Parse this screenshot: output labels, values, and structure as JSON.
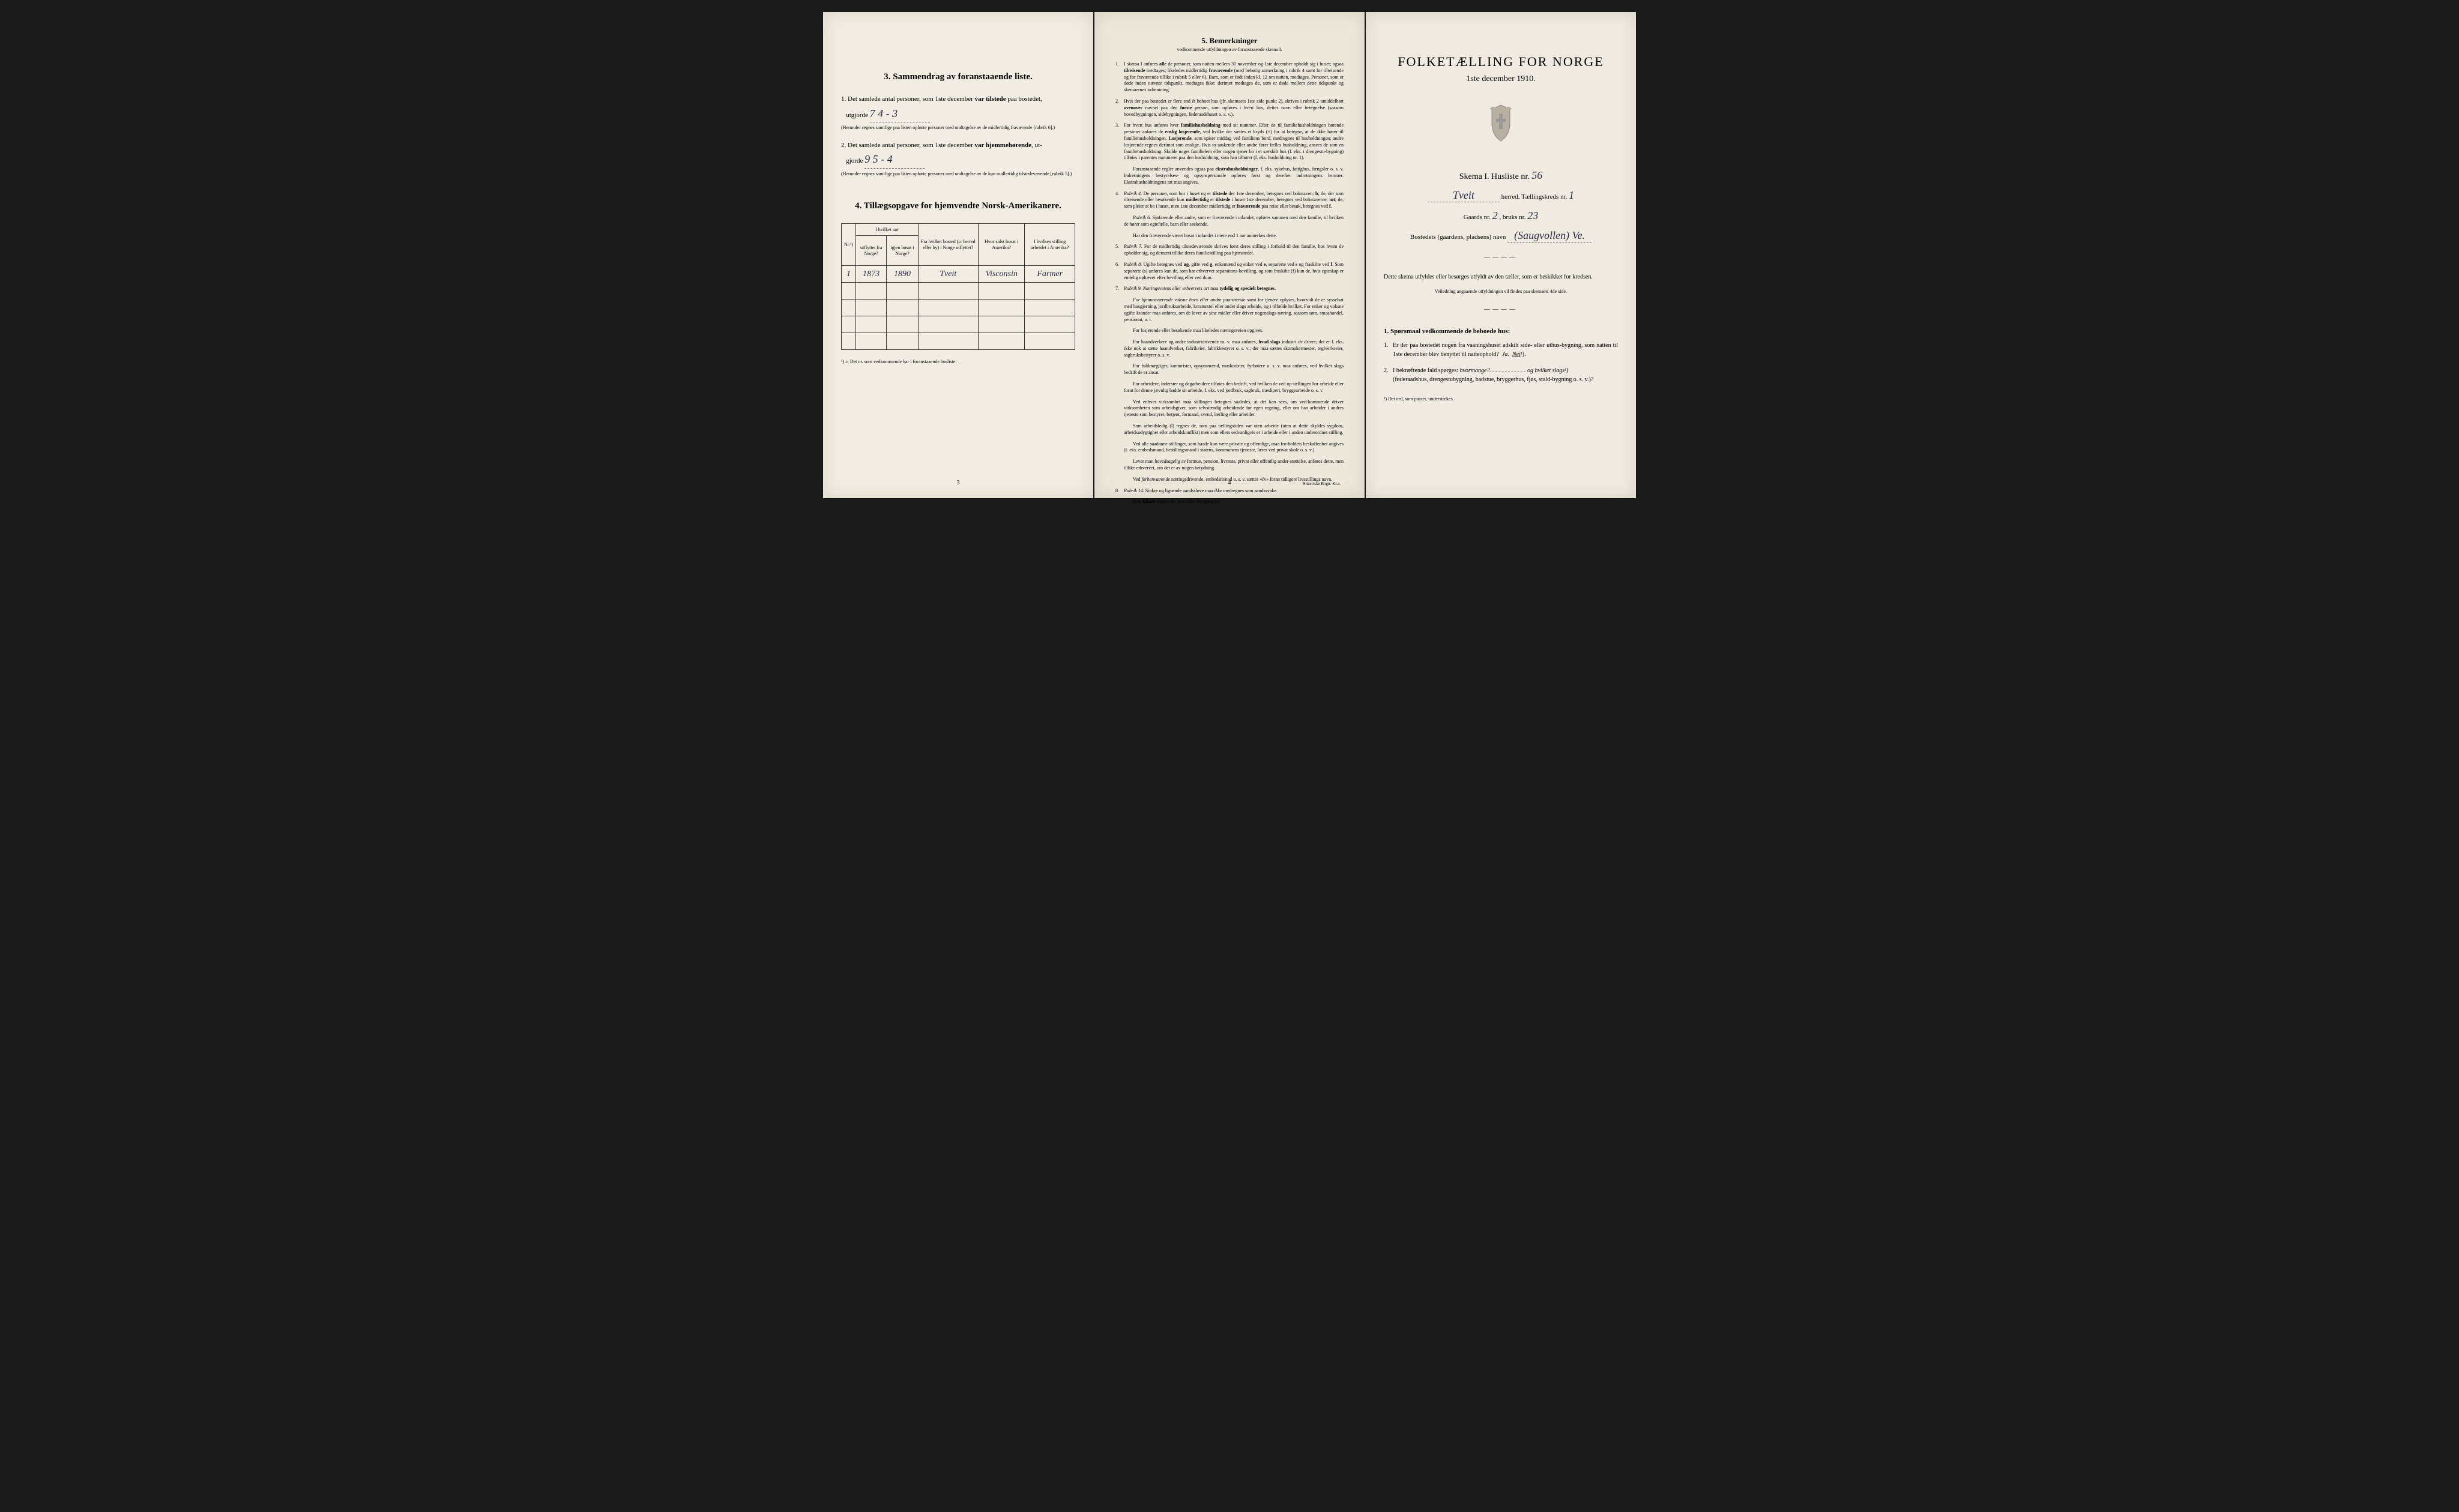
{
  "page1": {
    "section3": {
      "title": "3. Sammendrag av foranstaaende liste.",
      "item1_text": "Det samlede antal personer, som 1ste december",
      "item1_bold": "var tilstede",
      "item1_cont": "paa bostedet,",
      "item1_line2": "utgjorde",
      "item1_written": "7  4 - 3",
      "item1_note": "(Herunder regnes samtlige paa listen opførte personer med undtagelse av de midlertidig fraværende [rubrik 6].)",
      "item2_text": "Det samlede antal personer, som 1ste december",
      "item2_bold": "var hjemmehørende",
      "item2_cont": ", ut-",
      "item2_line2": "gjorde",
      "item2_written": "9  5 - 4",
      "item2_note": "(Herunder regnes samtlige paa listen opførte personer med undtagelse av de kun midlertidig tilstedeværende [rubrik 5].)"
    },
    "section4": {
      "title": "4. Tillægsopgave for hjemvendte Norsk-Amerikanere.",
      "table": {
        "headers": {
          "col1": "Nr.¹)",
          "col2_top": "I hvilket aar",
          "col2a": "utflyttet fra Norge?",
          "col2b": "igjen bosat i Norge?",
          "col3": "Fra hvilket bosted (ɔ: herred eller by) i Norge utflyttet?",
          "col4": "Hvor sidst bosat i Amerika?",
          "col5": "I hvilken stilling arbeidet i Amerika?"
        },
        "row1": {
          "nr": "1",
          "year1": "1873",
          "year2": "1890",
          "place_from": "Tveit",
          "place_america": "Visconsin",
          "occupation": "Farmer"
        }
      },
      "footnote": "¹) ɔ: Det nr. som vedkommende har i foranstaaende husliste."
    },
    "page_num": "3"
  },
  "page2": {
    "title": "5. Bemerkninger",
    "subtitle": "vedkommende utfyldningen av foranstaaende skema I.",
    "rules": [
      {
        "num": "1.",
        "text": "I skema I anføres <b>alle</b> de personer, som natten mellem 30 november og 1ste december opholdt sig i huset; ogsaa <b>tilreisende</b> medtages; likeledes midlertidig <b>fraværende</b> (med behørig anmerkning i rubrik 4 samt for tilreisende og for fraværende tillike i rubrik 5 eller 6). Barn, som er født inden kl. 12 om natten, medtages. Personer, som er døde inden nævnte tidspunkt, medtages ikke; derimot medtages de, som er døde mellem dette tidspunkt og skemaernes avhentning."
      },
      {
        "num": "2.",
        "text": "Hvis der paa bostedet er flere end ét beboet hus (jfr. skemaets 1ste side punkt 2), skrives i rubrik 2 umiddelbart <b>ovenover</b> navnet paa den <b>første</b> person, som opføres i hvert hus, dettes navn eller betegnelse (saasom hovedbygningen, sidebygningen, føderaadshuset o. s. v.)."
      },
      {
        "num": "3.",
        "text": "For hvert hus anføres hver <b>familiehusholdning</b> med sit nummer. Efter de til familiehusholdningen hørende personer anføres de <b>enslig losjerende</b>, ved hvilke der sættes et kryds (×) for at betegne, at de ikke hører til familiehusholdningen. <b>Losjerende</b>, som spiser middag ved familiens bord, medregnes til husholdningen; andre losjerende regnes derimot som enslige. Hvis to søskende eller andre fører fælles husholdning, ansees de som en familiehusholdning. Skulde noget familielem eller nogen tjener bo i et særskilt hus (f. eks. i drengestu-bygning) tilføies i parentes nummeret paa den husholdning, som han tilhører (f. eks. husholdning nr. 1)."
      },
      {
        "num": "",
        "text": "Foranstaaende regler anvendes ogsaa paa <b>ekstrahusholdninger</b>, f. eks. sykehus, fattighus, fængsler o. s. v. Indretningens bestyrelses- og opsynspersonale opføres først og derefter indretningens lemmer. Ekstrahusholdningens art maa angives."
      },
      {
        "num": "4.",
        "text": "<i>Rubrik 4.</i> De personer, som bor i huset og er <b>tilstede</b> der 1ste december, betegnes ved bokstaven: <b>b</b>; de, der som tilreisende eller besøkende kun <b>midlertidig</b> er <b>tilstede</b> i huset 1ste december, betegnes ved bokstaverne: <b>mt</b>; de, som pleier at bo i huset, men 1ste december midlertidig er <b>fraværende</b> paa reise eller besøk, betegnes ved <b>f</b>."
      },
      {
        "num": "",
        "text": "<i>Rubrik 6.</i> Sjøfarende eller andre, som er fraværende i utlandet, opføres sammen med den familie, til hvilken de hører som egtefælle, barn eller søskende."
      },
      {
        "num": "",
        "text": "Har den fraværende været bosat i utlandet i mere end 1 aar anmerkes dette."
      },
      {
        "num": "5.",
        "text": "<i>Rubrik 7.</i> For de midlertidig tilstedeværende skrives først deres stilling i forhold til den familie, hos hvem de opholder sig, og dernæst tillike deres familiestilling paa hjemstedet."
      },
      {
        "num": "6.",
        "text": "<i>Rubrik 8.</i> Ugifte betegnes ved <b>ug</b>, gifte ved <b>g</b>, enkemænd og enker ved <b>e</b>, separerte ved <b>s</b> og fraskilte ved <b>f</b>. Som separerte (s) anføres kun de, som har erhvervet separations-bevilling, og som fraskilte (f) kun de, hvis egteskap er endelig ophævet efter bevilling eller ved dom."
      },
      {
        "num": "7.",
        "text": "<i>Rubrik 9. Næringsveiens eller erhvervets art</i> maa <b>tydelig og specielt betegnes</b>."
      },
      {
        "num": "",
        "text": "<i>For hjemmeværende voksne barn eller andre paarørende</i> samt for <i>tjenere</i> oplyses, hvorvidt de er sysselsat med husgjerning, jordbruksarbeide, kreaturstel eller andet slags arbeide, og i tilfælde hvilket. For enker og voksne ugifte kvinder maa anføres, om de lever av sine midler eller driver nogenslags næring, saasom søm, smaahandel, pensionat, o. l."
      },
      {
        "num": "",
        "text": "For losjerende eller besøkende maa likeledes næringsveien opgives."
      },
      {
        "num": "",
        "text": "For haandverkere og andre industridrivende m. v. maa anføres, <b>hvad slags</b> industri de driver; det er f. eks. ikke nok at sætte haandverker, fabrikeier, fabrikbestyrer o. s. v.; der maa sættes skomakermester, teglverkseier, sagbruksbestyrer o. s. v."
      },
      {
        "num": "",
        "text": "For fuldmægtiger, kontorister, opsynsmænd, maskinister, fyrbøtere o. s. v. maa anføres, ved hvilket slags bedrift de er ansat."
      },
      {
        "num": "",
        "text": "For arbeidere, inderster og dagarbeidere tilføies den bedrift, ved hvilken de ved op-tællingen har arbeide eller forut for denne jævnlig hadde sit arbeide, f. eks. ved jordbruk, sagbruk, træsliperi, bryggearbeide o. s. v."
      },
      {
        "num": "",
        "text": "Ved enhver virksomhet maa stillingen betegnes saaledes, at det kan sees, om ved-kommende driver virksomheten som arbeidsgiver, som selvstændig arbeidende for egen regning, eller om han arbeider i andres tjeneste som bestyrer, betjent, formand, svend, lærling eller arbeider."
      },
      {
        "num": "",
        "text": "Som arbeidsledig (l) regnes de, som paa tællingstiden var uten arbeide (uten at dette skyldes sygdom, arbeidsudygtighet eller arbeidskonflikt) men som ellers sedvanligvis er i arbeide eller i anden underordnet stilling."
      },
      {
        "num": "",
        "text": "Ved alle saadanne stillinger, som baade kun være private og offentlige, maa for-holdets beskaffenhet angives (f. eks. embedsmand, bestillingsmand i statens, kommunens tjeneste, lærer ved privat skole o. s. v.)."
      },
      {
        "num": "",
        "text": "Lever man <i>hovedsagelig</i> av formue, pension, livrente, privat eller offentlig under-støttelse, anføres dette, men tillike erhvervet, om det er av nogen betydning."
      },
      {
        "num": "",
        "text": "Ved <i>forhenværende</i> næringsdrivende, embedsmænd o. s. v. sættes «fv» foran tidligere livsstillings navn."
      },
      {
        "num": "8.",
        "text": "<i>Rubrik 14.</i> Sinker og lignende aandssløve maa <i>ikke</i> medregnes som aandssvake."
      },
      {
        "num": "",
        "text": "Som <b>blinde</b> regnes de, som ikke har gangsyn."
      }
    ],
    "page_num": "4",
    "printer": "Sitzen'ske Bogtr. Kr.a."
  },
  "page3": {
    "main_title": "FOLKETÆLLING FOR NORGE",
    "date": "1ste december 1910.",
    "skema_text": "Skema I.  Husliste nr.",
    "skema_nr": "56",
    "herred_label": "herred.  Tællingskreds nr.",
    "herred_name": "Tveit",
    "kreds_nr": "1",
    "gaards_label": "Gaards nr.",
    "gaards_nr": "2",
    "bruks_label": ", bruks nr.",
    "bruks_nr": "23",
    "bosted_label": "Bostedets (gaardens, pladsens) navn",
    "bosted_name": "(Saugvollen) Ve.",
    "instruct1": "Dette skema utfyldes eller besørges utfyldt av den tæller, som er beskikket for kredsen.",
    "instruct2": "Veiledning angaaende utfyldningen vil findes paa skemaets 4de side.",
    "q_title": "1. Spørsmaal vedkommende de beboede hus:",
    "q1": "Er der paa bostedet nogen fra vaaningshuset adskilt side- eller uthus-bygning, som natten til 1ste december blev benyttet til natteophold?",
    "q1_ja": "Ja.",
    "q1_nei": "Nei",
    "q1_sup": "¹).",
    "q2": "I bekræftende fald spørges:",
    "q2_a": "hvormange?",
    "q2_b": "og hvilket slags¹)",
    "q2_cont": "(føderaadshus, drengestubygnlng, badstue, bryggerhus, fjøs, stald-bygning o. s. v.)?",
    "footnote3": "¹) Det ord, som passer, understrekes."
  }
}
